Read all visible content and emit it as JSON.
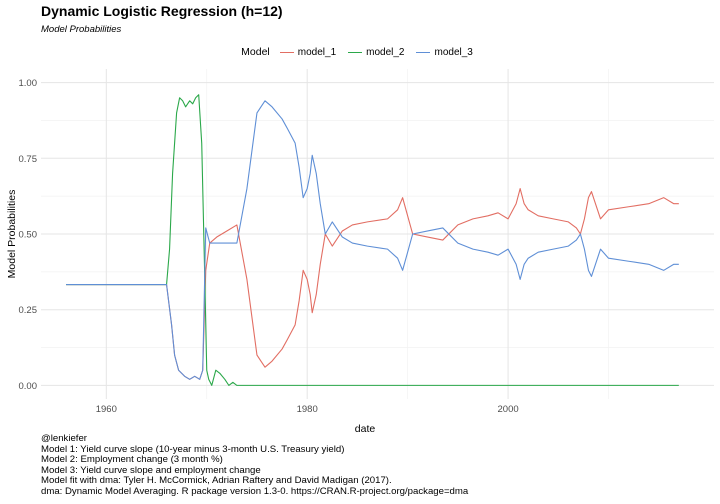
{
  "header": {
    "title": "Dynamic Logistic Regression (h=12)",
    "subtitle": "Model Probabilities"
  },
  "legend": {
    "title": "Model",
    "items": [
      {
        "label": "model_1",
        "color": "#e26e63"
      },
      {
        "label": "model_2",
        "color": "#2ba84a"
      },
      {
        "label": "model_3",
        "color": "#5f8fd6"
      }
    ]
  },
  "caption": {
    "lines": [
      "@lenkiefer",
      "Model 1: Yield curve slope (10-year minus 3-month U.S. Treasury yield)",
      "Model 2: Employment change (3 month %)",
      "Model 3: Yield curve slope and employment change",
      "Model fit with dma: Tyler H. McCormick, Adrian Raftery and David Madigan (2017).",
      "dma: Dynamic Model Averaging. R package version 1.3-0. https://CRAN.R-project.org/package=dma"
    ]
  },
  "chart_data": {
    "type": "line",
    "title": "Dynamic Logistic Regression (h=12)",
    "subtitle": "Model Probabilities",
    "xlabel": "date",
    "ylabel": "Model Probabilities",
    "xlim": [
      1953.5,
      2020.5
    ],
    "ylim": [
      -0.045,
      1.045
    ],
    "x_ticks": [
      1960,
      1980,
      2000
    ],
    "x_tick_labels": [
      "1960",
      "1980",
      "2000"
    ],
    "y_ticks": [
      0,
      0.25,
      0.5,
      0.75,
      1
    ],
    "y_tick_labels": [
      "0.00",
      "0.25",
      "0.50",
      "0.75",
      "1.00"
    ],
    "grid": true,
    "legend_position": "top",
    "series": [
      {
        "name": "model_1",
        "color": "#e26e63",
        "x": [
          1956.0,
          1966.0,
          1966.5,
          1966.8,
          1967.2,
          1967.8,
          1968.3,
          1968.8,
          1969.3,
          1969.6,
          1969.9,
          1970.3,
          1971.0,
          1972.0,
          1973.0,
          1974.0,
          1975.0,
          1975.4,
          1975.8,
          1976.5,
          1977.5,
          1978.0,
          1978.8,
          1979.2,
          1979.6,
          1980.0,
          1980.3,
          1980.5,
          1980.9,
          1981.3,
          1981.8,
          1982.5,
          1983.5,
          1984.5,
          1986.0,
          1988.0,
          1989.0,
          1989.5,
          1990.5,
          1992.0,
          1993.5,
          1995.0,
          1996.5,
          1998.0,
          1999.0,
          2000.0,
          2000.8,
          2001.2,
          2001.6,
          2002.0,
          2003.0,
          2004.5,
          2006.0,
          2006.8,
          2007.2,
          2007.6,
          2008.0,
          2008.3,
          2008.7,
          2009.2,
          2010.0,
          2012.0,
          2014.0,
          2015.5,
          2016.5,
          2017.0
        ],
        "y": [
          0.333,
          0.333,
          0.2,
          0.1,
          0.05,
          0.03,
          0.02,
          0.03,
          0.02,
          0.05,
          0.38,
          0.47,
          0.49,
          0.51,
          0.53,
          0.35,
          0.1,
          0.08,
          0.06,
          0.08,
          0.12,
          0.15,
          0.2,
          0.28,
          0.38,
          0.35,
          0.3,
          0.24,
          0.3,
          0.4,
          0.5,
          0.46,
          0.51,
          0.53,
          0.54,
          0.55,
          0.58,
          0.62,
          0.5,
          0.49,
          0.48,
          0.53,
          0.55,
          0.56,
          0.57,
          0.55,
          0.6,
          0.65,
          0.6,
          0.58,
          0.56,
          0.55,
          0.54,
          0.52,
          0.5,
          0.55,
          0.62,
          0.64,
          0.6,
          0.55,
          0.58,
          0.59,
          0.6,
          0.62,
          0.6,
          0.6
        ]
      },
      {
        "name": "model_2",
        "color": "#2ba84a",
        "x": [
          1956.0,
          1966.0,
          1966.3,
          1966.6,
          1967.0,
          1967.3,
          1967.6,
          1967.9,
          1968.3,
          1968.6,
          1968.9,
          1969.2,
          1969.5,
          1969.8,
          1970.0,
          1970.2,
          1970.5,
          1970.9,
          1971.3,
          1971.8,
          1972.2,
          1972.6,
          1973.0,
          1973.3,
          1973.6,
          1974.0,
          1980.0,
          2000.0,
          2017.0
        ],
        "y": [
          0.333,
          0.333,
          0.45,
          0.7,
          0.9,
          0.95,
          0.94,
          0.92,
          0.94,
          0.93,
          0.95,
          0.96,
          0.8,
          0.36,
          0.05,
          0.02,
          0.0,
          0.05,
          0.04,
          0.02,
          0.0,
          0.01,
          0.0,
          0.0,
          0.0,
          0.0,
          0.0,
          0.0,
          0.0
        ]
      },
      {
        "name": "model_3",
        "color": "#5f8fd6",
        "x": [
          1956.0,
          1966.0,
          1966.5,
          1966.8,
          1967.2,
          1967.8,
          1968.3,
          1968.8,
          1969.3,
          1969.6,
          1969.9,
          1970.3,
          1971.0,
          1972.0,
          1973.0,
          1974.0,
          1975.0,
          1975.4,
          1975.8,
          1976.5,
          1977.5,
          1978.0,
          1978.8,
          1979.2,
          1979.6,
          1980.0,
          1980.3,
          1980.5,
          1980.9,
          1981.3,
          1981.8,
          1982.5,
          1983.5,
          1984.5,
          1986.0,
          1988.0,
          1989.0,
          1989.5,
          1990.5,
          1992.0,
          1993.5,
          1995.0,
          1996.5,
          1998.0,
          1999.0,
          2000.0,
          2000.8,
          2001.2,
          2001.6,
          2002.0,
          2003.0,
          2004.5,
          2006.0,
          2006.8,
          2007.2,
          2007.6,
          2008.0,
          2008.3,
          2008.7,
          2009.2,
          2010.0,
          2012.0,
          2014.0,
          2015.5,
          2016.5,
          2017.0
        ],
        "y": [
          0.333,
          0.333,
          0.2,
          0.1,
          0.05,
          0.03,
          0.02,
          0.03,
          0.02,
          0.05,
          0.52,
          0.47,
          0.47,
          0.47,
          0.47,
          0.65,
          0.9,
          0.92,
          0.94,
          0.92,
          0.88,
          0.85,
          0.8,
          0.72,
          0.62,
          0.65,
          0.7,
          0.76,
          0.7,
          0.6,
          0.5,
          0.54,
          0.49,
          0.47,
          0.46,
          0.45,
          0.42,
          0.38,
          0.5,
          0.51,
          0.52,
          0.47,
          0.45,
          0.44,
          0.43,
          0.45,
          0.4,
          0.35,
          0.4,
          0.42,
          0.44,
          0.45,
          0.46,
          0.48,
          0.5,
          0.45,
          0.38,
          0.36,
          0.4,
          0.45,
          0.42,
          0.41,
          0.4,
          0.38,
          0.4,
          0.4
        ]
      }
    ]
  }
}
